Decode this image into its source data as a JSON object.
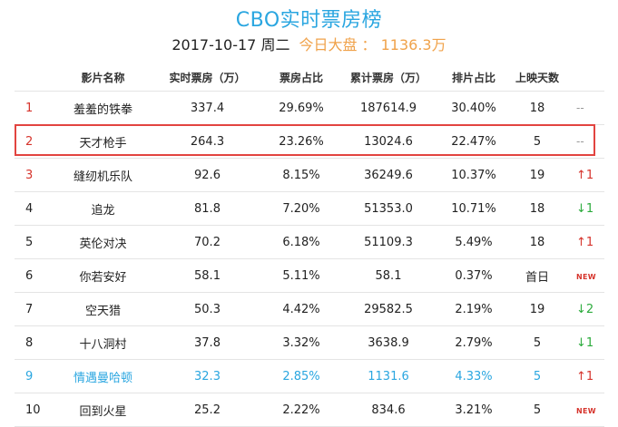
{
  "header": {
    "title": "CBO实时票房榜",
    "date": "2017-10-17 周二",
    "total_label": "今日大盘 ： 1136.3万"
  },
  "columns": [
    "影片名称",
    "实时票房（万）",
    "票房占比",
    "累计票房（万）",
    "排片占比",
    "上映天数"
  ],
  "rows": [
    {
      "rank": "1",
      "name": "羞羞的铁拳",
      "realtime": "337.4",
      "share": "29.69%",
      "cumulative": "187614.9",
      "screening": "30.40%",
      "days": "18",
      "trend": "--",
      "trend_type": "none",
      "style": "red-rank"
    },
    {
      "rank": "2",
      "name": "天才枪手",
      "realtime": "264.3",
      "share": "23.26%",
      "cumulative": "13024.6",
      "screening": "22.47%",
      "days": "5",
      "trend": "--",
      "trend_type": "none",
      "style": "red-rank"
    },
    {
      "rank": "3",
      "name": "缝纫机乐队",
      "realtime": "92.6",
      "share": "8.15%",
      "cumulative": "36249.6",
      "screening": "10.37%",
      "days": "19",
      "trend": "↑1",
      "trend_type": "up",
      "style": "red-rank"
    },
    {
      "rank": "4",
      "name": "追龙",
      "realtime": "81.8",
      "share": "7.20%",
      "cumulative": "51353.0",
      "screening": "10.71%",
      "days": "18",
      "trend": "↓1",
      "trend_type": "down",
      "style": "normal"
    },
    {
      "rank": "5",
      "name": "英伦对决",
      "realtime": "70.2",
      "share": "6.18%",
      "cumulative": "51109.3",
      "screening": "5.49%",
      "days": "18",
      "trend": "↑1",
      "trend_type": "up",
      "style": "normal"
    },
    {
      "rank": "6",
      "name": "你若安好",
      "realtime": "58.1",
      "share": "5.11%",
      "cumulative": "58.1",
      "screening": "0.37%",
      "days": "首日",
      "trend": "NEW",
      "trend_type": "new",
      "style": "normal"
    },
    {
      "rank": "7",
      "name": "空天猎",
      "realtime": "50.3",
      "share": "4.42%",
      "cumulative": "29582.5",
      "screening": "2.19%",
      "days": "19",
      "trend": "↓2",
      "trend_type": "down",
      "style": "normal"
    },
    {
      "rank": "8",
      "name": "十八洞村",
      "realtime": "37.8",
      "share": "3.32%",
      "cumulative": "3638.9",
      "screening": "2.79%",
      "days": "5",
      "trend": "↓1",
      "trend_type": "down",
      "style": "normal"
    },
    {
      "rank": "9",
      "name": "情遇曼哈顿",
      "realtime": "32.3",
      "share": "2.85%",
      "cumulative": "1131.6",
      "screening": "4.33%",
      "days": "5",
      "trend": "↑1",
      "trend_type": "up",
      "style": "blue"
    },
    {
      "rank": "10",
      "name": "回到火星",
      "realtime": "25.2",
      "share": "2.22%",
      "cumulative": "834.6",
      "screening": "3.21%",
      "days": "5",
      "trend": "NEW",
      "trend_type": "new",
      "style": "normal"
    }
  ],
  "colors": {
    "accent": "#2aa6e0",
    "total": "#f0a24a",
    "rank_red": "#d6342c",
    "up": "#d6342c",
    "down": "#2bab3c",
    "highlight_border": "#e24440"
  },
  "highlighted_row_rank": "2"
}
